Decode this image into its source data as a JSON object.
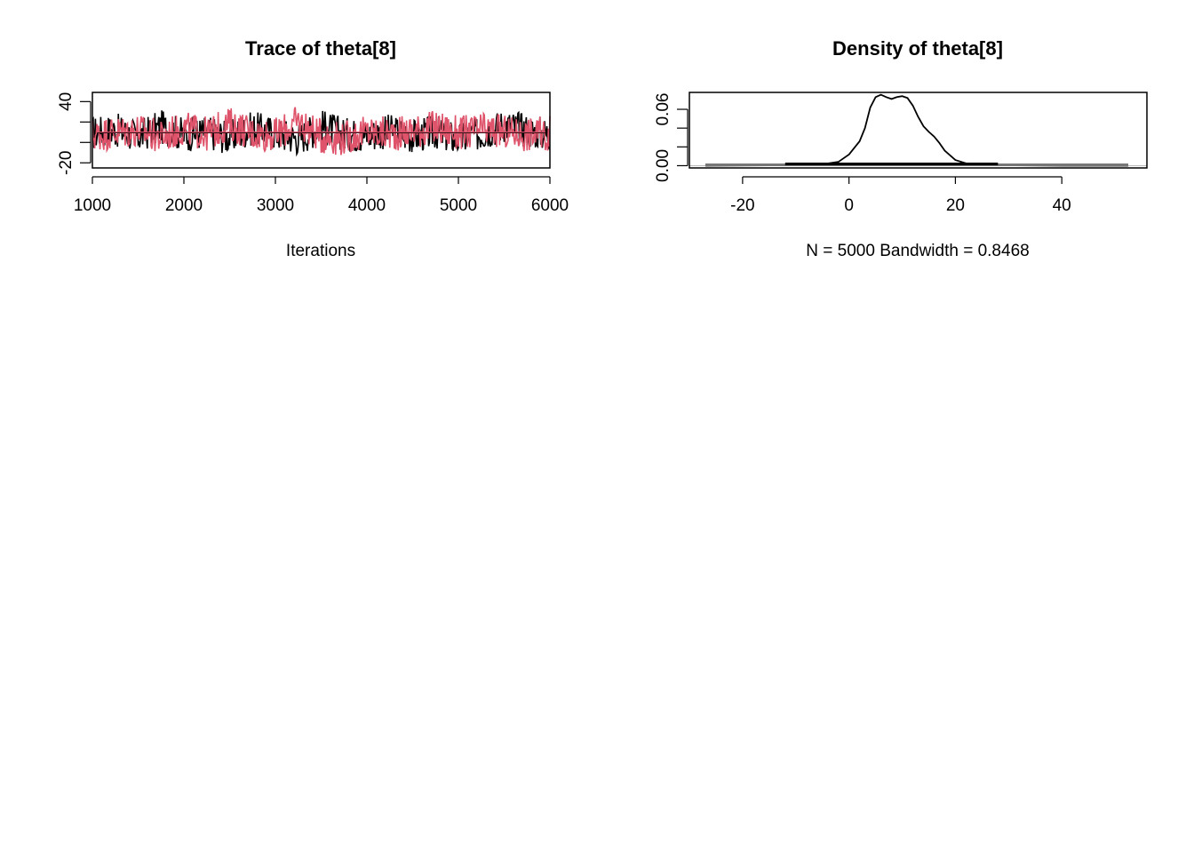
{
  "chart_data": [
    {
      "type": "line",
      "title": "Trace of theta[8]",
      "xlabel": "Iterations",
      "ylabel": "",
      "xlim": [
        1000,
        6000
      ],
      "ylim": [
        -25,
        49
      ],
      "x_ticks": [
        "1000",
        "2000",
        "3000",
        "4000",
        "5000",
        "6000"
      ],
      "y_ticks": [
        "-20",
        "",
        "",
        "40"
      ],
      "y_tick_values": [
        -20,
        0,
        20,
        40
      ],
      "grid": false,
      "series": [
        {
          "color": "#000000",
          "description": "chain 1 trace, fluctuating mostly between about -15 and 35, centered near 9",
          "x": [
            1000,
            1250,
            1500,
            1750,
            2000,
            2250,
            2500,
            2750,
            3000,
            3250,
            3500,
            3750,
            4000,
            4250,
            4500,
            4750,
            5000,
            5250,
            5500,
            5750,
            6000
          ],
          "y": [
            9,
            12,
            6,
            15,
            8,
            10,
            5,
            14,
            9,
            4,
            16,
            8,
            7,
            11,
            6,
            10,
            3,
            9,
            17,
            12,
            8
          ]
        },
        {
          "color": "#DF536B",
          "description": "chain 2 trace, fluctuating mostly between about -10 and 35, centered near 9",
          "x": [
            1000,
            1250,
            1500,
            1750,
            2000,
            2250,
            2500,
            2750,
            3000,
            3250,
            3500,
            3750,
            4000,
            4250,
            4500,
            4750,
            5000,
            5250,
            5500,
            5750,
            6000
          ],
          "y": [
            7,
            10,
            12,
            5,
            14,
            8,
            18,
            9,
            7,
            20,
            6,
            4,
            10,
            8,
            11,
            15,
            9,
            12,
            10,
            8,
            9
          ]
        }
      ]
    },
    {
      "type": "line",
      "title": "Density of theta[8]",
      "xlabel": "N = 5000   Bandwidth = 0.8468",
      "ylabel": "",
      "xlim": [
        -30,
        56
      ],
      "ylim": [
        -0.0024,
        0.078
      ],
      "x_ticks": [
        "-20",
        "0",
        "20",
        "40"
      ],
      "y_ticks": [
        "0.00",
        "",
        "",
        "0.06"
      ],
      "y_tick_values": [
        0,
        0.02,
        0.04,
        0.06
      ],
      "grid": false,
      "series": [
        {
          "color": "#000000",
          "x": [
            -27,
            -10,
            -5,
            -2,
            0,
            1,
            2,
            3,
            4,
            5,
            6,
            7,
            8,
            9,
            10,
            11,
            12,
            13,
            14,
            15,
            16,
            17,
            18,
            20,
            22,
            25,
            30,
            40,
            52.5
          ],
          "y": [
            0,
            0.0005,
            0.0015,
            0.004,
            0.012,
            0.019,
            0.026,
            0.04,
            0.062,
            0.073,
            0.0755,
            0.073,
            0.071,
            0.073,
            0.074,
            0.072,
            0.064,
            0.052,
            0.042,
            0.036,
            0.031,
            0.024,
            0.016,
            0.006,
            0.0025,
            0.001,
            0.0003,
            0,
            0
          ]
        }
      ],
      "rug": {
        "min": -27,
        "max": 52.5,
        "color": "#777777"
      }
    }
  ]
}
